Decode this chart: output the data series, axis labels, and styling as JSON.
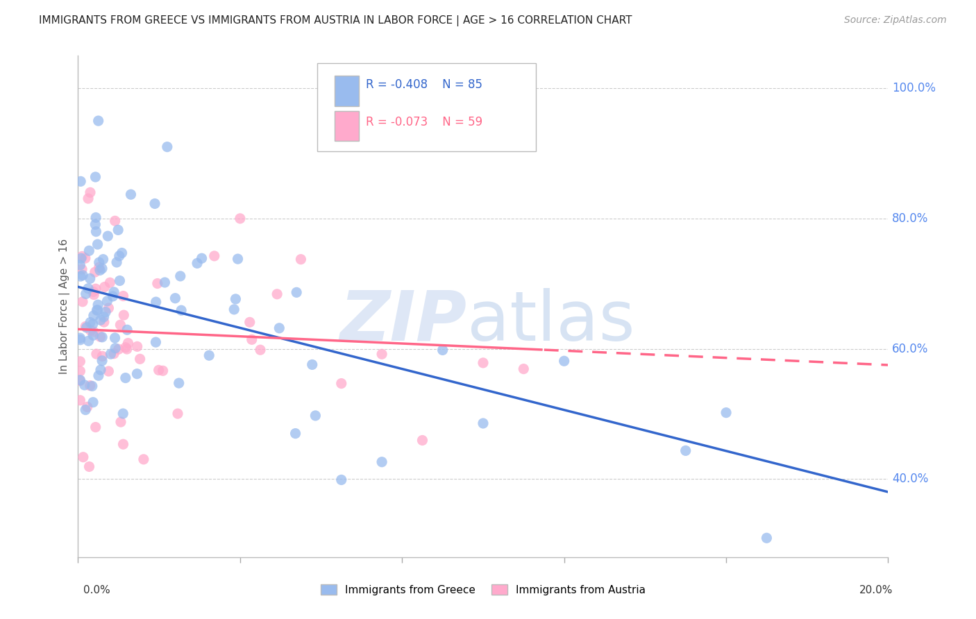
{
  "title": "IMMIGRANTS FROM GREECE VS IMMIGRANTS FROM AUSTRIA IN LABOR FORCE | AGE > 16 CORRELATION CHART",
  "source": "Source: ZipAtlas.com",
  "ylabel": "In Labor Force | Age > 16",
  "yticks": [
    0.4,
    0.6,
    0.8,
    1.0
  ],
  "ytick_labels": [
    "40.0%",
    "60.0%",
    "80.0%",
    "100.0%"
  ],
  "xlim": [
    0.0,
    0.2
  ],
  "ylim": [
    0.28,
    1.05
  ],
  "greece_R": -0.408,
  "greece_N": 85,
  "austria_R": -0.073,
  "austria_N": 59,
  "greece_color": "#99BBEE",
  "austria_color": "#FFAACC",
  "greece_line_color": "#3366CC",
  "austria_line_color": "#FF6688",
  "background_color": "#FFFFFF",
  "grid_color": "#CCCCCC",
  "axis_label_color": "#5588EE",
  "legend_box_color": "#DDDDDD",
  "watermark_zip_color": "#C8D8F0",
  "watermark_atlas_color": "#B0C8E8"
}
